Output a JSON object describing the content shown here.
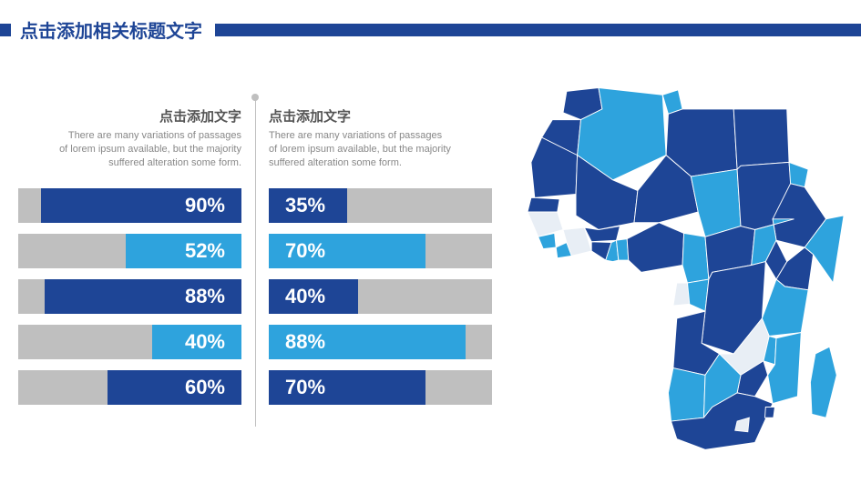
{
  "header": {
    "title": "点击添加相关标题文字",
    "accent_color": "#1e4596"
  },
  "leftColumn": {
    "title": "点击添加文字",
    "subtitle": "There are many variations of passages of lorem ipsum available, but the majority suffered alteration some form.",
    "track_color": "#bfbfbf",
    "label_color": "#ffffff",
    "label_fontsize": 22,
    "bars": [
      {
        "value": 90,
        "label": "90%",
        "fill_color": "#1e4596"
      },
      {
        "value": 52,
        "label": "52%",
        "fill_color": "#2ea3dd"
      },
      {
        "value": 88,
        "label": "88%",
        "fill_color": "#1e4596"
      },
      {
        "value": 40,
        "label": "40%",
        "fill_color": "#2ea3dd"
      },
      {
        "value": 60,
        "label": "60%",
        "fill_color": "#1e4596"
      }
    ]
  },
  "rightColumn": {
    "title": "点击添加文字",
    "subtitle": "There are many variations of passages of lorem ipsum available, but the majority suffered alteration some form.",
    "track_color": "#bfbfbf",
    "label_color": "#ffffff",
    "label_fontsize": 22,
    "bars": [
      {
        "value": 35,
        "label": "35%",
        "fill_color": "#1e4596"
      },
      {
        "value": 70,
        "label": "70%",
        "fill_color": "#2ea3dd"
      },
      {
        "value": 40,
        "label": "40%",
        "fill_color": "#1e4596"
      },
      {
        "value": 88,
        "label": "88%",
        "fill_color": "#2ea3dd"
      },
      {
        "value": 70,
        "label": "70%",
        "fill_color": "#1e4596"
      }
    ]
  },
  "map": {
    "type": "choropleth",
    "region": "Africa",
    "stroke_color": "#ffffff",
    "palette": {
      "dark": "#1e4596",
      "light": "#2ea3dd",
      "empty": "#e8eef5"
    },
    "countries": [
      {
        "name": "Morocco",
        "color": "dark"
      },
      {
        "name": "WesternSahara",
        "color": "dark"
      },
      {
        "name": "Algeria",
        "color": "light"
      },
      {
        "name": "Tunisia",
        "color": "light"
      },
      {
        "name": "Libya",
        "color": "dark"
      },
      {
        "name": "Egypt",
        "color": "dark"
      },
      {
        "name": "Mauritania",
        "color": "dark"
      },
      {
        "name": "Mali",
        "color": "dark"
      },
      {
        "name": "Niger",
        "color": "dark"
      },
      {
        "name": "Chad",
        "color": "light"
      },
      {
        "name": "Sudan",
        "color": "dark"
      },
      {
        "name": "Eritrea",
        "color": "light"
      },
      {
        "name": "Ethiopia",
        "color": "dark"
      },
      {
        "name": "Somalia",
        "color": "light"
      },
      {
        "name": "Senegal",
        "color": "dark"
      },
      {
        "name": "Guinea",
        "color": "empty"
      },
      {
        "name": "SierraLeone",
        "color": "light"
      },
      {
        "name": "Liberia",
        "color": "light"
      },
      {
        "name": "IvoryCoast",
        "color": "empty"
      },
      {
        "name": "Ghana",
        "color": "dark"
      },
      {
        "name": "BurkinaFaso",
        "color": "dark"
      },
      {
        "name": "Togo",
        "color": "light"
      },
      {
        "name": "Benin",
        "color": "light"
      },
      {
        "name": "Nigeria",
        "color": "dark"
      },
      {
        "name": "Cameroon",
        "color": "light"
      },
      {
        "name": "CAR",
        "color": "dark"
      },
      {
        "name": "SouthSudan",
        "color": "light"
      },
      {
        "name": "Gabon",
        "color": "empty"
      },
      {
        "name": "Congo",
        "color": "light"
      },
      {
        "name": "DRC",
        "color": "dark"
      },
      {
        "name": "Uganda",
        "color": "dark"
      },
      {
        "name": "Kenya",
        "color": "dark"
      },
      {
        "name": "Tanzania",
        "color": "light"
      },
      {
        "name": "Angola",
        "color": "dark"
      },
      {
        "name": "Zambia",
        "color": "empty"
      },
      {
        "name": "Malawi",
        "color": "light"
      },
      {
        "name": "Mozambique",
        "color": "light"
      },
      {
        "name": "Zimbabwe",
        "color": "dark"
      },
      {
        "name": "Namibia",
        "color": "light"
      },
      {
        "name": "Botswana",
        "color": "light"
      },
      {
        "name": "SouthAfrica",
        "color": "dark"
      },
      {
        "name": "Lesotho",
        "color": "empty"
      },
      {
        "name": "Swaziland",
        "color": "dark"
      },
      {
        "name": "Madagascar",
        "color": "light"
      }
    ]
  }
}
